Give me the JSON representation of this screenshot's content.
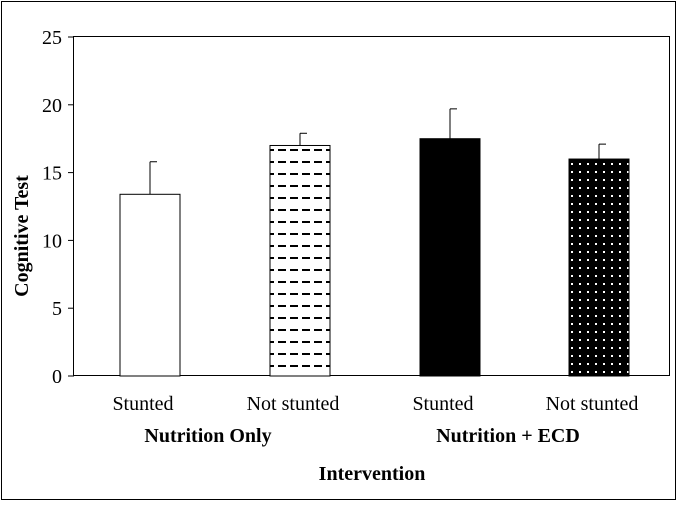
{
  "chart_data": {
    "type": "bar",
    "title": "",
    "xlabel": "Intervention",
    "ylabel": "Cognitive Test",
    "ylim": [
      0,
      25
    ],
    "yticks": [
      0,
      5,
      10,
      15,
      20,
      25
    ],
    "grid": false,
    "legend": "none",
    "groups": [
      {
        "label": "Nutrition Only",
        "categories": [
          "Stunted",
          "Not stunted"
        ]
      },
      {
        "label": "Nutrition + ECD",
        "categories": [
          "Stunted",
          "Not stunted"
        ]
      }
    ],
    "categories": [
      "Stunted",
      "Not stunted",
      "Stunted",
      "Not stunted"
    ],
    "values": [
      13.4,
      17.0,
      17.5,
      16.0
    ],
    "errors": [
      2.4,
      0.9,
      2.2,
      1.1
    ],
    "bar_styles": [
      "white",
      "dashes",
      "black",
      "dots"
    ]
  }
}
